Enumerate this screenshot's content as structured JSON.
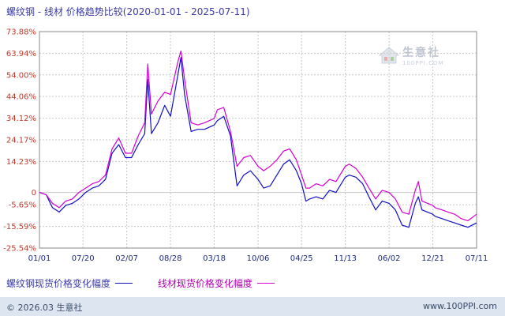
{
  "title": "螺纹钢 - 线材 价格趋势比较(2020-01-01 - 2025-07-11)",
  "footer": {
    "left": "© 2026.03 生意社",
    "right": "www.100PPI.com"
  },
  "watermark": {
    "text": "生意社",
    "url": "100PPI.COM"
  },
  "colors": {
    "series_a": "#1010c8",
    "series_b": "#d400d4",
    "grid": "#c8c8c8",
    "ytick": "#c0392b",
    "xtick": "#1f2a7a"
  },
  "chart_data": {
    "type": "line",
    "ylim": [
      -25.54,
      73.88
    ],
    "y_ticks": [
      "73.88%",
      "63.94%",
      "54.00%",
      "44.06%",
      "34.12%",
      "24.17%",
      "14.23%",
      "0",
      "-5.65%",
      "-15.59%",
      "-25.54%"
    ],
    "y_tick_values": [
      73.88,
      63.94,
      54.0,
      44.06,
      34.12,
      24.17,
      14.23,
      0,
      -5.65,
      -15.59,
      -25.54
    ],
    "x_ticks": [
      "01/01",
      "07/20",
      "02/07",
      "08/28",
      "03/18",
      "10/06",
      "04/25",
      "11/13",
      "06/02",
      "12/21",
      "07/11"
    ],
    "x_tick_dates": [
      "2020-01-01",
      "2020-07-20",
      "2021-02-07",
      "2021-08-28",
      "2022-03-18",
      "2022-10-06",
      "2023-04-25",
      "2023-11-13",
      "2024-06-02",
      "2024-12-21",
      "2025-07-11"
    ],
    "grid": true,
    "series": [
      {
        "name": "螺纹钢现货价格变化幅度",
        "color": "#1010c8",
        "points": [
          [
            "2020-01-01",
            0
          ],
          [
            "2020-02-01",
            -1
          ],
          [
            "2020-03-01",
            -7
          ],
          [
            "2020-04-01",
            -9
          ],
          [
            "2020-05-01",
            -6
          ],
          [
            "2020-06-01",
            -5
          ],
          [
            "2020-07-01",
            -3
          ],
          [
            "2020-08-01",
            0
          ],
          [
            "2020-09-01",
            2
          ],
          [
            "2020-10-01",
            3
          ],
          [
            "2020-11-01",
            6
          ],
          [
            "2020-12-01",
            18
          ],
          [
            "2021-01-01",
            22
          ],
          [
            "2021-02-01",
            16
          ],
          [
            "2021-03-01",
            16
          ],
          [
            "2021-04-01",
            22
          ],
          [
            "2021-05-01",
            27
          ],
          [
            "2021-05-15",
            52
          ],
          [
            "2021-06-01",
            27
          ],
          [
            "2021-07-01",
            32
          ],
          [
            "2021-08-01",
            40
          ],
          [
            "2021-08-28",
            35
          ],
          [
            "2021-10-01",
            54
          ],
          [
            "2021-10-15",
            62
          ],
          [
            "2021-11-01",
            45
          ],
          [
            "2021-12-01",
            28
          ],
          [
            "2022-01-01",
            29
          ],
          [
            "2022-02-01",
            29
          ],
          [
            "2022-03-18",
            31
          ],
          [
            "2022-04-01",
            33
          ],
          [
            "2022-05-01",
            35
          ],
          [
            "2022-06-01",
            26
          ],
          [
            "2022-07-01",
            3
          ],
          [
            "2022-08-01",
            8
          ],
          [
            "2022-09-01",
            10
          ],
          [
            "2022-10-06",
            6
          ],
          [
            "2022-11-01",
            2
          ],
          [
            "2022-12-01",
            3
          ],
          [
            "2023-01-01",
            8
          ],
          [
            "2023-02-01",
            13
          ],
          [
            "2023-03-01",
            15
          ],
          [
            "2023-04-01",
            10
          ],
          [
            "2023-04-25",
            4
          ],
          [
            "2023-05-15",
            -4
          ],
          [
            "2023-06-01",
            -3
          ],
          [
            "2023-07-01",
            -2
          ],
          [
            "2023-08-01",
            -3
          ],
          [
            "2023-09-01",
            1
          ],
          [
            "2023-10-01",
            0
          ],
          [
            "2023-11-13",
            7
          ],
          [
            "2023-12-01",
            8
          ],
          [
            "2024-01-01",
            7
          ],
          [
            "2024-02-01",
            4
          ],
          [
            "2024-03-01",
            -2
          ],
          [
            "2024-04-01",
            -8
          ],
          [
            "2024-05-01",
            -4
          ],
          [
            "2024-06-02",
            -5
          ],
          [
            "2024-07-01",
            -8
          ],
          [
            "2024-08-01",
            -15
          ],
          [
            "2024-09-01",
            -16
          ],
          [
            "2024-10-01",
            -5
          ],
          [
            "2024-10-15",
            -2
          ],
          [
            "2024-11-01",
            -8
          ],
          [
            "2024-12-21",
            -10
          ],
          [
            "2025-01-01",
            -11
          ],
          [
            "2025-02-01",
            -12
          ],
          [
            "2025-03-01",
            -13
          ],
          [
            "2025-04-01",
            -14
          ],
          [
            "2025-05-01",
            -15
          ],
          [
            "2025-06-01",
            -16
          ],
          [
            "2025-07-11",
            -14
          ]
        ]
      },
      {
        "name": "线材现货价格变化幅度",
        "color": "#d400d4",
        "points": [
          [
            "2020-01-01",
            0
          ],
          [
            "2020-02-01",
            -1
          ],
          [
            "2020-03-01",
            -5
          ],
          [
            "2020-04-01",
            -7
          ],
          [
            "2020-05-01",
            -4
          ],
          [
            "2020-06-01",
            -3
          ],
          [
            "2020-07-01",
            0
          ],
          [
            "2020-08-01",
            2
          ],
          [
            "2020-09-01",
            4
          ],
          [
            "2020-10-01",
            5
          ],
          [
            "2020-11-01",
            8
          ],
          [
            "2020-12-01",
            20
          ],
          [
            "2021-01-01",
            25
          ],
          [
            "2021-02-01",
            18
          ],
          [
            "2021-03-01",
            18
          ],
          [
            "2021-04-01",
            26
          ],
          [
            "2021-05-01",
            32
          ],
          [
            "2021-05-15",
            59
          ],
          [
            "2021-06-01",
            36
          ],
          [
            "2021-07-01",
            42
          ],
          [
            "2021-08-01",
            46
          ],
          [
            "2021-08-28",
            45
          ],
          [
            "2021-10-01",
            60
          ],
          [
            "2021-10-15",
            65
          ],
          [
            "2021-11-01",
            52
          ],
          [
            "2021-12-01",
            32
          ],
          [
            "2022-01-01",
            31
          ],
          [
            "2022-02-01",
            32
          ],
          [
            "2022-03-18",
            34
          ],
          [
            "2022-04-01",
            38
          ],
          [
            "2022-05-01",
            39
          ],
          [
            "2022-06-01",
            28
          ],
          [
            "2022-07-01",
            12
          ],
          [
            "2022-08-01",
            16
          ],
          [
            "2022-09-01",
            17
          ],
          [
            "2022-10-06",
            12
          ],
          [
            "2022-11-01",
            10
          ],
          [
            "2022-12-01",
            12
          ],
          [
            "2023-01-01",
            15
          ],
          [
            "2023-02-01",
            19
          ],
          [
            "2023-03-01",
            20
          ],
          [
            "2023-04-01",
            15
          ],
          [
            "2023-04-25",
            8
          ],
          [
            "2023-05-15",
            2
          ],
          [
            "2023-06-01",
            2
          ],
          [
            "2023-07-01",
            4
          ],
          [
            "2023-08-01",
            3
          ],
          [
            "2023-09-01",
            6
          ],
          [
            "2023-10-01",
            5
          ],
          [
            "2023-11-13",
            12
          ],
          [
            "2023-12-01",
            13
          ],
          [
            "2024-01-01",
            11
          ],
          [
            "2024-02-01",
            7
          ],
          [
            "2024-03-01",
            2
          ],
          [
            "2024-04-01",
            -3
          ],
          [
            "2024-05-01",
            1
          ],
          [
            "2024-06-02",
            0
          ],
          [
            "2024-07-01",
            -3
          ],
          [
            "2024-08-01",
            -9
          ],
          [
            "2024-09-01",
            -10
          ],
          [
            "2024-10-01",
            1
          ],
          [
            "2024-10-15",
            5
          ],
          [
            "2024-11-01",
            -4
          ],
          [
            "2024-12-21",
            -6
          ],
          [
            "2025-01-01",
            -7
          ],
          [
            "2025-02-01",
            -8
          ],
          [
            "2025-03-01",
            -9
          ],
          [
            "2025-04-01",
            -10
          ],
          [
            "2025-05-01",
            -12
          ],
          [
            "2025-06-01",
            -13
          ],
          [
            "2025-07-11",
            -10
          ]
        ]
      }
    ]
  }
}
